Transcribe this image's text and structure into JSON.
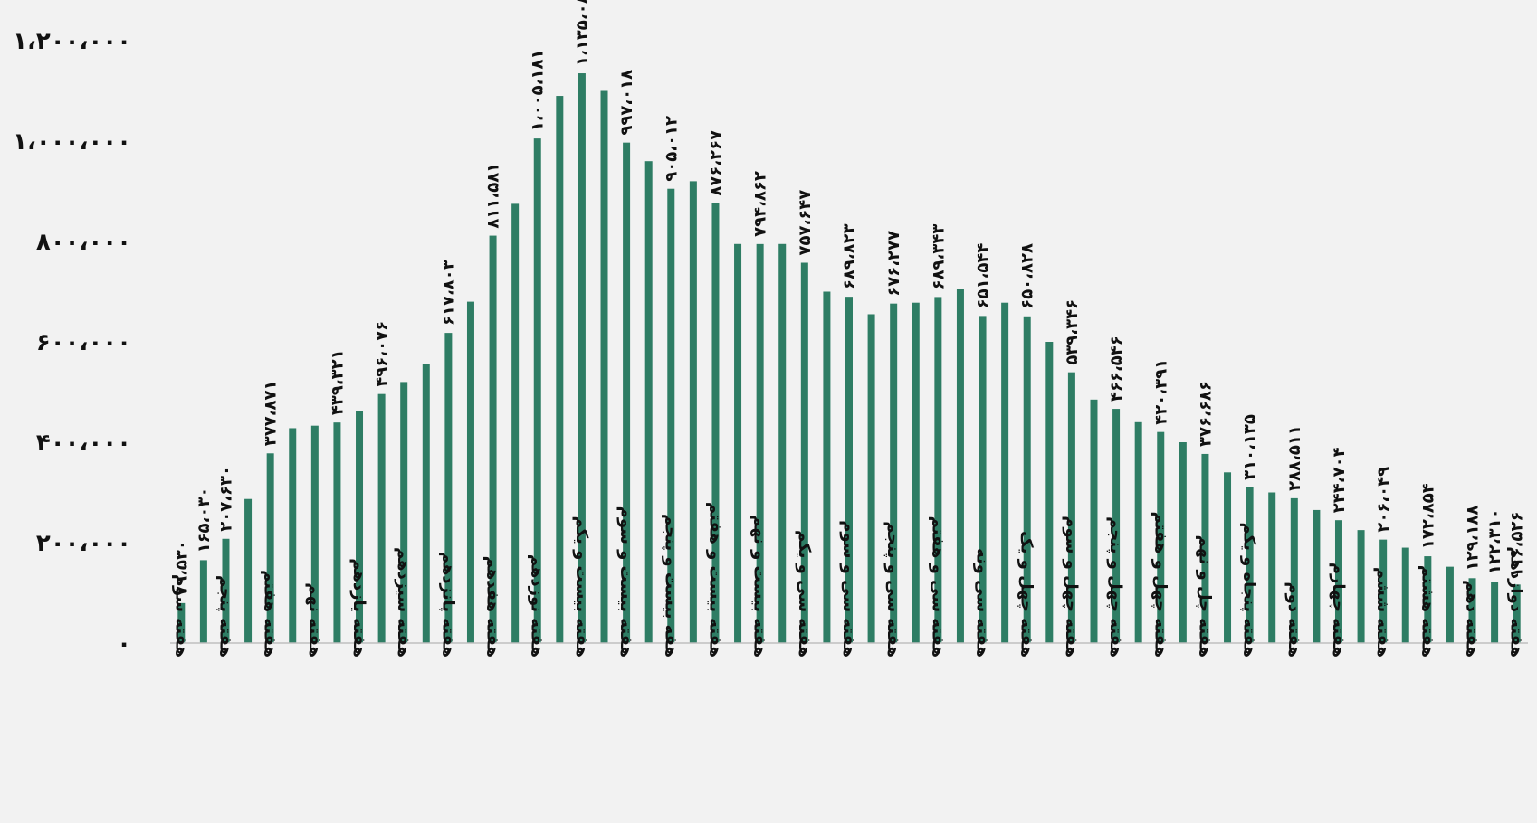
{
  "chart_data": {
    "type": "bar",
    "title": "",
    "xlabel": "",
    "ylabel": "",
    "ylim": [
      0,
      1200000
    ],
    "yticks": [
      0,
      200000,
      400000,
      600000,
      800000,
      1000000,
      1200000
    ],
    "ytick_labels": [
      "۰",
      "۲۰۰،۰۰۰",
      "۴۰۰،۰۰۰",
      "۶۰۰،۰۰۰",
      "۸۰۰،۰۰۰",
      "۱،۰۰۰،۰۰۰",
      "۱،۲۰۰،۰۰۰"
    ],
    "grid": false,
    "legend": "none",
    "bar_color": "#2e7d64",
    "values": [
      79530,
      165030,
      207630,
      287000,
      377871,
      428000,
      433000,
      439321,
      462000,
      496076,
      520000,
      555000,
      617803,
      680000,
      811581,
      875000,
      1005181,
      1090000,
      1135083,
      1100000,
      997018,
      960000,
      905012,
      920000,
      876267,
      795000,
      794862,
      795000,
      757647,
      700000,
      689823,
      655000,
      676277,
      678000,
      689343,
      705000,
      651544,
      678000,
      650828,
      600000,
      539346,
      485000,
      466546,
      440000,
      420391,
      400000,
      376686,
      340000,
      310135,
      300000,
      288511,
      265000,
      244704,
      225000,
      206049,
      190000,
      172854,
      152000,
      129188,
      122310,
      116526
    ],
    "data_labels": [
      {
        "index": 0,
        "text": "۷۹،۵۳۰"
      },
      {
        "index": 1,
        "text": "۱۶۵،۰۳۰"
      },
      {
        "index": 2,
        "text": "۲۰۷،۶۳۰"
      },
      {
        "index": 4,
        "text": "۳۷۷،۸۷۱"
      },
      {
        "index": 7,
        "text": "۴۳۹،۳۲۱"
      },
      {
        "index": 9,
        "text": "۴۹۶،۰۷۶"
      },
      {
        "index": 12,
        "text": "۶۱۷،۸۰۳"
      },
      {
        "index": 14,
        "text": "۸۱۱،۵۸۱"
      },
      {
        "index": 16,
        "text": "۱،۰۰۵،۱۸۱"
      },
      {
        "index": 18,
        "text": "۱،۱۳۵،۰۸۳"
      },
      {
        "index": 20,
        "text": "۹۹۷،۰۱۸"
      },
      {
        "index": 22,
        "text": "۹۰۵،۰۱۲"
      },
      {
        "index": 24,
        "text": "۸۷۶،۲۶۷"
      },
      {
        "index": 26,
        "text": "۷۹۴،۸۶۲"
      },
      {
        "index": 28,
        "text": "۷۵۷،۶۴۷"
      },
      {
        "index": 30,
        "text": "۶۸۹،۸۲۳"
      },
      {
        "index": 32,
        "text": "۶۷۶،۲۷۷"
      },
      {
        "index": 34,
        "text": "۶۸۹،۳۴۳"
      },
      {
        "index": 36,
        "text": "۶۵۱،۵۴۴"
      },
      {
        "index": 38,
        "text": "۶۵۰،۸۲۸"
      },
      {
        "index": 40,
        "text": "۵۳۹،۳۴۶"
      },
      {
        "index": 42,
        "text": "۴۶۶،۵۴۶"
      },
      {
        "index": 44,
        "text": "۴۲۰،۳۹۱"
      },
      {
        "index": 46,
        "text": "۳۷۶،۶۸۶"
      },
      {
        "index": 48,
        "text": "۳۱۰،۱۳۵"
      },
      {
        "index": 50,
        "text": "۲۸۸،۵۱۱"
      },
      {
        "index": 52,
        "text": "۲۴۴،۷۰۴"
      },
      {
        "index": 54,
        "text": "۲۰۶،۰۴۹"
      },
      {
        "index": 56,
        "text": "۱۷۲،۸۵۴"
      },
      {
        "index": 58,
        "text": "۱۲۹،۱۸۸"
      },
      {
        "index": 59,
        "text": "۱۲۲،۳۱۰"
      },
      {
        "index": 60,
        "text": "۱۱۶،۵۲۶"
      }
    ],
    "category_labels": [
      {
        "index": 0,
        "text": "هفته سوم"
      },
      {
        "index": 2,
        "text": "هفته پنجم"
      },
      {
        "index": 4,
        "text": "هفته هفتم"
      },
      {
        "index": 6,
        "text": "هفته نهم"
      },
      {
        "index": 8,
        "text": "هفته یازدهم"
      },
      {
        "index": 10,
        "text": "هفته سیزدهم"
      },
      {
        "index": 12,
        "text": "هفته پانزدهم"
      },
      {
        "index": 14,
        "text": "هفته هفدهم"
      },
      {
        "index": 16,
        "text": "هفته نوزدهم"
      },
      {
        "index": 18,
        "text": "هفته بیست و یکم"
      },
      {
        "index": 20,
        "text": "هفته بیست و سوم"
      },
      {
        "index": 22,
        "text": "هفه بیست و پنجم"
      },
      {
        "index": 24,
        "text": "هفته بیست و هفتم"
      },
      {
        "index": 26,
        "text": "هفته بیست و نهم"
      },
      {
        "index": 28,
        "text": "هفته سی و یکم"
      },
      {
        "index": 30,
        "text": "هفته سی و سوم"
      },
      {
        "index": 32,
        "text": "هفته سی و پنجم"
      },
      {
        "index": 34,
        "text": "هفته سی و هفتم"
      },
      {
        "index": 36,
        "text": "هفته سی ونه"
      },
      {
        "index": 38,
        "text": "هفته چهل و یک"
      },
      {
        "index": 40,
        "text": "هفته چهل و سوم"
      },
      {
        "index": 42,
        "text": "هفته چهل و پنجم"
      },
      {
        "index": 44,
        "text": "هفته چهل و هفتم"
      },
      {
        "index": 46,
        "text": "هفته چل و نهم"
      },
      {
        "index": 48,
        "text": "هفته پنجاه و یکم"
      },
      {
        "index": 50,
        "text": "هفته دوم"
      },
      {
        "index": 52,
        "text": "هفته چهارم"
      },
      {
        "index": 54,
        "text": "هفته ششم"
      },
      {
        "index": 56,
        "text": "هفته هشتم"
      },
      {
        "index": 58,
        "text": "هفته دهم"
      },
      {
        "index": 60,
        "text": "هفته دوازدهم"
      }
    ]
  }
}
